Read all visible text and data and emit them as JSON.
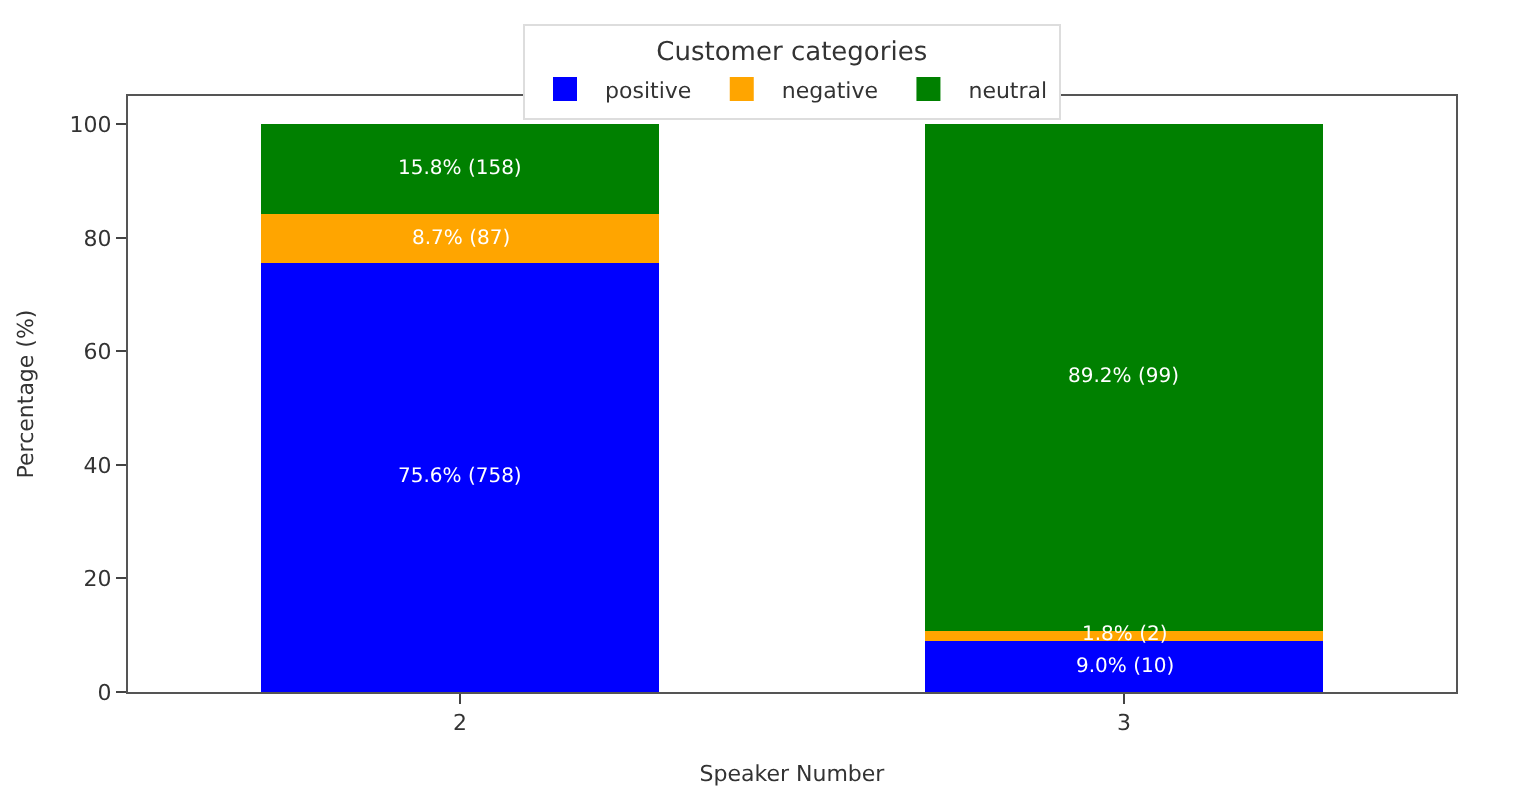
{
  "chart_data": {
    "type": "bar",
    "stacked": true,
    "xlabel": "Speaker Number",
    "ylabel": "Percentage (%)",
    "legend_title": "Customer categories",
    "legend": "top",
    "categories": [
      "2",
      "3"
    ],
    "series": [
      {
        "name": "positive",
        "color": "#0000ff",
        "values": [
          75.6,
          9.0
        ],
        "value_labels": [
          "75.6% (758)",
          "9.0% (10)"
        ]
      },
      {
        "name": "negative",
        "color": "#ffa500",
        "values": [
          8.7,
          1.8
        ],
        "value_labels": [
          "8.7% (87)",
          "1.8% (2)"
        ]
      },
      {
        "name": "neutral",
        "color": "#008000",
        "values": [
          15.8,
          89.2
        ],
        "value_labels": [
          "15.8% (158)",
          "89.2% (99)"
        ]
      }
    ],
    "ylim": [
      0,
      105
    ],
    "yticks": [
      0,
      20,
      40,
      60,
      80,
      100
    ]
  }
}
